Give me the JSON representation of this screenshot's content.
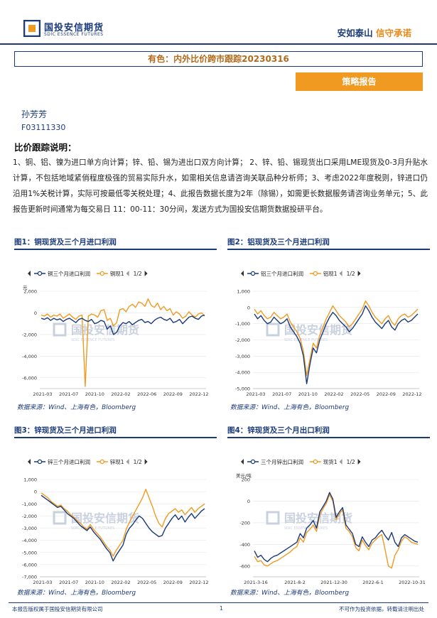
{
  "header": {
    "logo_cn": "国投安信期货",
    "logo_en": "SDIC ESSENCE FUTURES",
    "slogan_part1": "安如泰山",
    "slogan_part2": "信守承诺",
    "colors": {
      "navy": "#1a3a7a",
      "orange": "#f09a22"
    }
  },
  "title": "有色：内外比价跨市跟踪20230316",
  "report_type": "策略报告",
  "author": "孙芳芳",
  "author_id": "F03111330",
  "section_title": "比价跟踪说明：",
  "description": "1、铜、铝、镍为进口单方向计算；锌、铅、锡为进出口双方向计算； 2、锌、铅、锡现货出口采用LME现货及0-3月升贴水计算，不包括地域紧俏程度极强的贸易实际升水，如需相关信息请咨询关联品种分析师；3、考虑2022年度税则，锌进口仍沿用1%关税计算，实际可按最低零关税处理；4、此报告数据长度为2年（除锡），如需更长数据服务请咨询业务单元；5、此报告更新时间通常为每交易日 11：00-11：30分间，发送方式为国投安信期货数据投研平台。",
  "watermark": {
    "cn": "国投安信期货",
    "en": "SDIC ESSENCE FUTURES"
  },
  "figures": [
    {
      "title": "图1：铜现货及三个月进口利润",
      "source": "数据来源：Wind、上海有色，Bloomberg",
      "chart_data": {
        "type": "line",
        "unit_label": "元",
        "legend_page": "1/2",
        "ylim": [
          -7000,
          2000
        ],
        "yticks": [
          "2,000",
          "0",
          "-2,000",
          "-4,000",
          "-6,000"
        ],
        "xticks": [
          "2021-03",
          "2021-07",
          "2021-10",
          "2022-02",
          "2022-06",
          "2022-09",
          "2022-12"
        ],
        "series": [
          {
            "name": "铜三个月进口利润",
            "color": "#1a3a7a",
            "values": [
              -500,
              -600,
              -450,
              -700,
              -500,
              -650,
              -550,
              -800,
              -600,
              -500,
              -700,
              -900,
              -600,
              -500,
              -700,
              -800,
              -600,
              -1000,
              -900,
              -700,
              -800,
              -1500,
              -1200,
              -2000,
              -1800,
              -1200,
              -900,
              -1000,
              -800,
              -1100,
              -900,
              -700,
              -600,
              -900,
              -800,
              -1000,
              -700,
              -500,
              -400,
              -600,
              -700,
              -500,
              -900,
              -800,
              -600,
              -1000,
              -700,
              -400,
              -300,
              -500,
              -600,
              -300,
              -200
            ]
          },
          {
            "name": "铜现1",
            "color": "#f09a22",
            "values": [
              -200,
              -300,
              -100,
              -400,
              -200,
              -300,
              -100,
              -500,
              -300,
              -100,
              -400,
              -600,
              -300,
              -200,
              -6800,
              -300,
              -100,
              -200,
              -400,
              200,
              300,
              -700,
              -500,
              -1200,
              -900,
              300,
              400,
              100,
              600,
              800,
              500,
              1000,
              900,
              600,
              1300,
              700,
              500,
              900,
              300,
              600,
              200,
              400,
              -200,
              100,
              -100,
              -500,
              -300,
              100,
              -200,
              -400,
              -100,
              0,
              -300
            ]
          }
        ]
      }
    },
    {
      "title": "图2：铝现货及三个月进口利润",
      "source": "数据来源：Wind、上海有色，Bloomberg",
      "chart_data": {
        "type": "line",
        "unit_label": "",
        "legend_page": "1/2",
        "ylim": [
          -5000,
          1000
        ],
        "yticks": [
          "1,000",
          "0",
          "-1,000",
          "-2,000",
          "-3,000",
          "-4,000",
          "-5,000"
        ],
        "xticks": [
          "2021-03",
          "2021-07",
          "2021-10",
          "2022-02",
          "2022-05",
          "2022-09",
          "2022-12"
        ],
        "series": [
          {
            "name": "铝三个月进口利润",
            "color": "#1a3a7a",
            "values": [
              -400,
              -700,
              -500,
              -800,
              -1000,
              -900,
              -600,
              -800,
              -1000,
              -900,
              -700,
              -1200,
              -1500,
              -1800,
              -2200,
              -3000,
              -4700,
              -3500,
              -2500,
              -2800,
              -2000,
              -1500,
              -1000,
              -600,
              -300,
              -500,
              -800,
              -1000,
              -1200,
              -1500,
              -1300,
              -1000,
              -700,
              -400,
              100,
              -200,
              -600,
              -900,
              -1100,
              -1300,
              -1000,
              -800,
              -1200,
              -1400,
              -1000,
              -800,
              -700,
              -900,
              -800,
              -600,
              -400
            ]
          },
          {
            "name": "铝现1",
            "color": "#f09a22",
            "values": [
              -100,
              -400,
              -200,
              -500,
              -700,
              -600,
              -300,
              -500,
              -700,
              -600,
              -400,
              -900,
              -1200,
              -1500,
              -1900,
              -2700,
              -4200,
              -3200,
              -2200,
              -2500,
              -1700,
              -1200,
              -700,
              -300,
              100,
              -200,
              -500,
              -700,
              -900,
              -1200,
              -1000,
              -700,
              -400,
              -100,
              400,
              100,
              -300,
              -600,
              -800,
              -1000,
              -700,
              -500,
              -900,
              -1100,
              -700,
              -500,
              -400,
              -600,
              -500,
              -300,
              -100
            ]
          }
        ]
      }
    },
    {
      "title": "图3：锌现货及三个月进口利润",
      "source": "数据来源：Wind、上海有色，Bloomberg",
      "chart_data": {
        "type": "line",
        "unit_label": "",
        "legend_page": "1/2",
        "ylim": [
          -7000,
          1000
        ],
        "yticks": [
          "1,000",
          "0",
          "-1,000",
          "-2,000",
          "-3,000",
          "-4,000",
          "-5,000",
          "-6,000",
          "-7,000"
        ],
        "xticks": [
          "2021-03",
          "2021-07",
          "2021-10",
          "2022-02",
          "2022-05",
          "2022-09",
          "2022-12"
        ],
        "series": [
          {
            "name": "锌三个月进口利润",
            "color": "#1a3a7a",
            "values": [
              -300,
              -500,
              -700,
              -900,
              -1100,
              -1300,
              -1200,
              -1500,
              -1800,
              -2000,
              -2200,
              -2500,
              -2800,
              -3000,
              -3200,
              -2900,
              -3300,
              -3600,
              -3900,
              -4300,
              -4700,
              -5000,
              -5700,
              -5200,
              -4800,
              -4400,
              -3500,
              -3000,
              -2700,
              -2300,
              -2000,
              -2200,
              -2600,
              -3000,
              -3300,
              -3500,
              -3700,
              -3600,
              -3000,
              -2600,
              -2200,
              -1900,
              -2300,
              -2000,
              -2500,
              -2100,
              -1800,
              -2200,
              -1900,
              -1600,
              -1400
            ]
          },
          {
            "name": "锌现1",
            "color": "#f09a22",
            "values": [
              -100,
              -300,
              -500,
              -800,
              -1000,
              -1200,
              -1100,
              -1400,
              -1600,
              -1900,
              -2100,
              -2400,
              -2600,
              -2900,
              -3100,
              -2700,
              -3100,
              -3400,
              -3700,
              -4100,
              -4500,
              -4800,
              -5300,
              -4800,
              -4400,
              -4000,
              -3100,
              -2500,
              -2000,
              -1500,
              -1000,
              -500,
              200,
              -500,
              -1200,
              -2000,
              -2600,
              -2900,
              -2200,
              -1800,
              -1600,
              -1400,
              -1700,
              -1500,
              -1900,
              -1600,
              -1300,
              -1700,
              -1400,
              -1200,
              -1000
            ]
          }
        ]
      }
    },
    {
      "title": "图4：锌现货及三个月出口利润",
      "source": "数据来源：Wind、上海有色，Bloomberg",
      "chart_data": {
        "type": "line",
        "unit_label": "美元/吨",
        "legend_page": "1/2",
        "ylim": [
          -700,
          200
        ],
        "yticks": [
          "200",
          "0",
          "-200",
          "-400",
          "-600"
        ],
        "xticks": [
          "2021-3-16",
          "2021-8-2",
          "2021-12-30",
          "2022-6-1",
          "2022-10-31"
        ],
        "series": [
          {
            "name": "三个月锌出口利润",
            "color": "#1a3a7a",
            "values": [
              -460,
              -520,
              -500,
              -540,
              -560,
              -530,
              -510,
              -500,
              -480,
              -460,
              -440,
              -420,
              -400,
              -380,
              -300,
              -340,
              -250,
              -220,
              -180,
              -250,
              -100,
              -50,
              0,
              80,
              20,
              -150,
              -100,
              -60,
              -220,
              -260,
              -300,
              -400,
              -420,
              -330,
              -380,
              -420,
              -360,
              -340,
              -300,
              -270,
              -320,
              -360,
              -290,
              -380,
              -420,
              -340,
              -310,
              -330,
              -350,
              -370,
              -380
            ]
          },
          {
            "name": "现货1",
            "color": "#f09a22",
            "values": [
              -510,
              -560,
              -550,
              -590,
              -600,
              -580,
              -560,
              -550,
              -530,
              -510,
              -490,
              -470,
              -440,
              -420,
              -340,
              -380,
              -290,
              -260,
              -220,
              -280,
              -130,
              -70,
              -20,
              60,
              0,
              -170,
              -120,
              -80,
              -250,
              -280,
              -330,
              -430,
              -460,
              -360,
              -410,
              -450,
              -390,
              -360,
              -330,
              -310,
              -450,
              -600,
              -620,
              -500,
              -450,
              -370,
              -330,
              -350,
              -380,
              -390,
              -400
            ]
          }
        ]
      }
    }
  ],
  "footer": {
    "left": "本报告版权属于国投安信期货有限公司",
    "page": "1",
    "right": "不可作为投资依据，转载请注明出处"
  }
}
